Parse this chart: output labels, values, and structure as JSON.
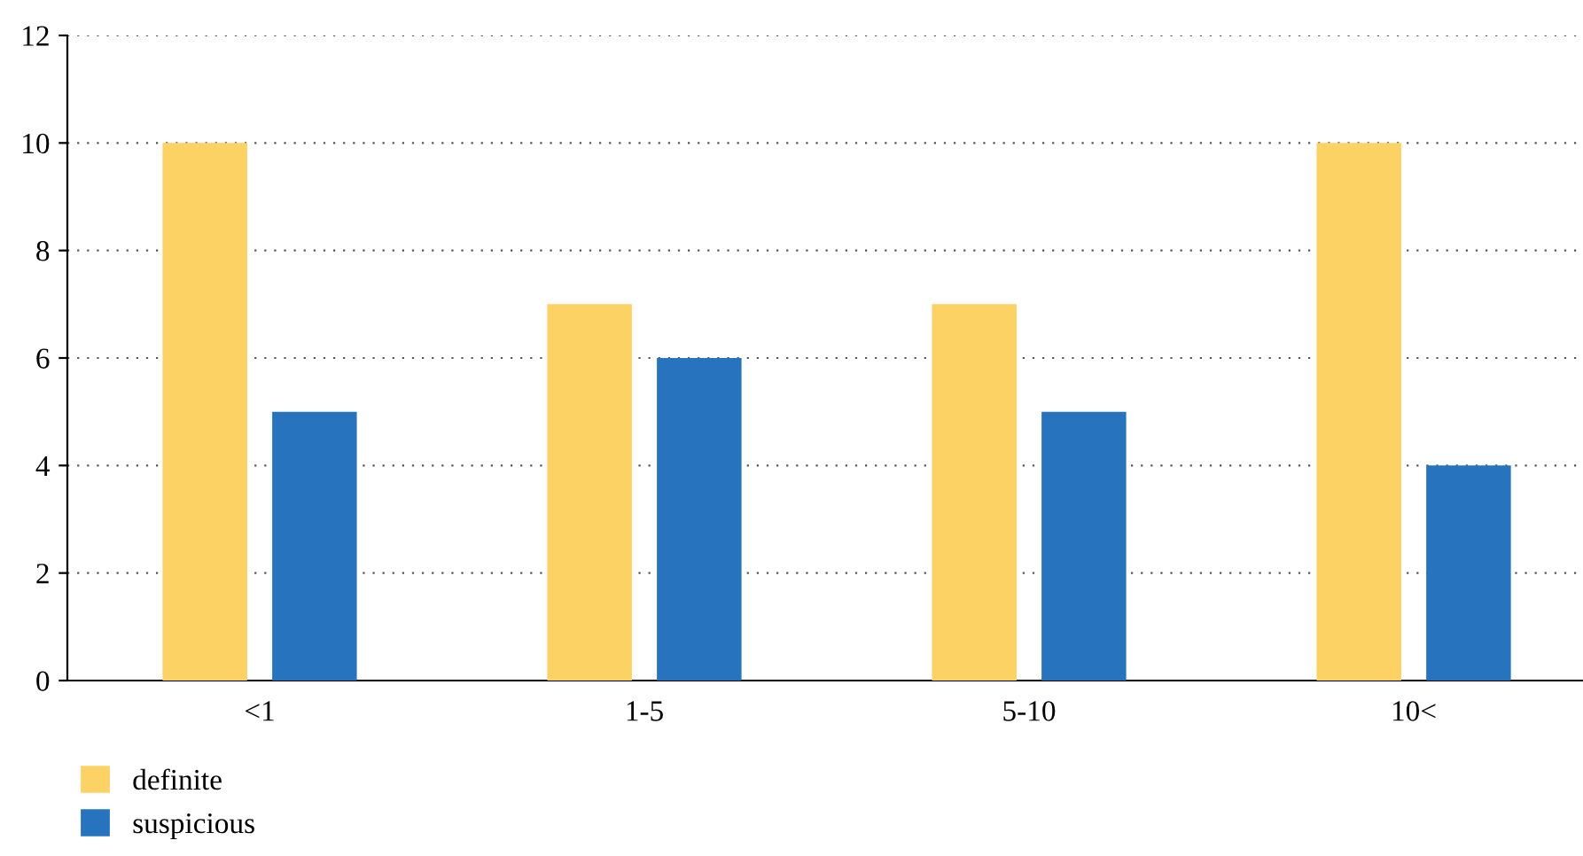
{
  "chart_data": {
    "type": "bar",
    "categories": [
      "<1",
      "1-5",
      "5-10",
      "10<"
    ],
    "series": [
      {
        "name": "definite",
        "color": "#fdd264",
        "values": [
          10,
          7,
          7,
          10
        ]
      },
      {
        "name": "suspicious",
        "color": "#2773bd",
        "values": [
          5,
          6,
          5,
          4
        ]
      }
    ],
    "ylim": [
      0,
      12
    ],
    "yticks": [
      0,
      2,
      4,
      6,
      8,
      10,
      12
    ],
    "grid": "y",
    "legend": "bottom left"
  }
}
